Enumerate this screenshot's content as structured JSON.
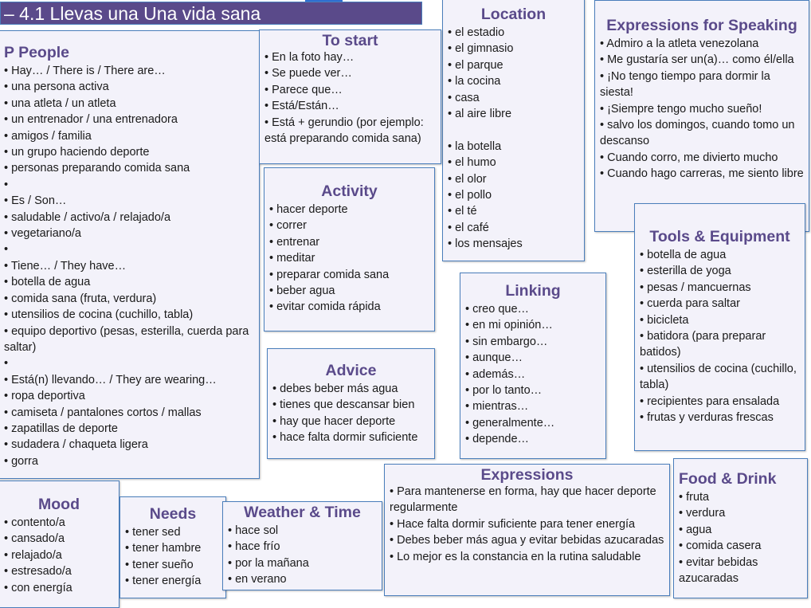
{
  "header": {
    "title": "– 4.1 Llevas una Una vida sana"
  },
  "people": {
    "title": "P People",
    "items": [
      "• Hay… / There is / There are…",
      "• una persona activa",
      "• una atleta / un atleta",
      "• un entrenador / una entrenadora",
      "• amigos / familia",
      "• un grupo haciendo deporte",
      "• personas preparando comida sana",
      "•",
      "• Es / Son…",
      "• saludable / activo/a / relajado/a",
      "• vegetariano/a",
      "•",
      "• Tiene… / They have…",
      "• botella de agua",
      "• comida sana (fruta, verdura)",
      "• utensilios de cocina (cuchillo, tabla)",
      "• equipo deportivo (pesas, esterilla, cuerda para saltar)",
      "•",
      "• Está(n) llevando… / They are wearing…",
      "• ropa deportiva",
      "• camiseta / pantalones cortos / mallas",
      "• zapatillas de deporte",
      "• sudadera / chaqueta ligera",
      "• gorra"
    ]
  },
  "to_start": {
    "title": "To start",
    "items": [
      "• En la foto hay…",
      "• Se puede ver…",
      "• Parece que…",
      "• Está/Están…",
      "• Está + gerundio (por ejemplo: está preparando comida sana)"
    ]
  },
  "activity": {
    "title": "Activity",
    "items": [
      "• hacer deporte",
      "• correr",
      "• entrenar",
      "• meditar",
      "• preparar comida sana",
      "• beber agua",
      "• evitar comida rápida"
    ]
  },
  "advice": {
    "title": "Advice",
    "items": [
      "• debes beber más agua",
      "• tienes que descansar bien",
      "• hay que hacer deporte",
      "• hace falta dormir suficiente"
    ]
  },
  "location": {
    "title": "Location",
    "items": [
      "• el estadio",
      "• el gimnasio",
      "• el parque",
      "• la cocina",
      "• casa",
      "• al aire libre",
      "",
      "• la botella",
      "• el humo",
      "• el olor",
      "• el pollo",
      "• el té",
      "• el café",
      "• los mensajes"
    ]
  },
  "speaking": {
    "title": "Expressions for Speaking",
    "items": [
      "• Admiro a la atleta venezolana",
      "• Me gustaría ser un(a)… como él/ella",
      "• ¡No tengo tiempo para dormir la siesta!",
      "• ¡Siempre tengo mucho sueño!",
      "• salvo los domingos, cuando tomo un descanso",
      "• Cuando corro, me divierto mucho",
      "• Cuando hago carreras, me siento libre"
    ]
  },
  "tools": {
    "title": "Tools & Equipment",
    "items": [
      "• botella de agua",
      "• esterilla de yoga",
      "• pesas / mancuernas",
      "• cuerda para saltar",
      "• bicicleta",
      "• batidora (para preparar batidos)",
      "• utensilios de cocina (cuchillo, tabla)",
      "• recipientes para ensalada",
      "• frutas y verduras frescas"
    ]
  },
  "linking": {
    "title": "Linking",
    "items": [
      "• creo que…",
      "• en mi opinión…",
      "• sin embargo…",
      "• aunque…",
      "• además…",
      "• por lo tanto…",
      "• mientras…",
      "• generalmente…",
      "• depende…"
    ]
  },
  "expressions": {
    "title": "Expressions",
    "items": [
      "• Para mantenerse en forma, hay que hacer deporte regularmente",
      "• Hace falta dormir suficiente para tener energía",
      "• Debes beber más agua y evitar bebidas azucaradas",
      "• Lo mejor es la constancia en la rutina saludable"
    ]
  },
  "food": {
    "title": "Food & Drink",
    "items": [
      "• fruta",
      "• verdura",
      "• agua",
      "• comida casera",
      "• evitar bebidas azucaradas"
    ]
  },
  "mood": {
    "title": "Mood",
    "items": [
      "• contento/a",
      "• cansado/a",
      "• relajado/a",
      "• estresado/a",
      "• con energía"
    ]
  },
  "needs": {
    "title": "Needs",
    "items": [
      "• tener sed",
      "• tener hambre",
      "• tener sueño",
      "• tener energía"
    ]
  },
  "weather": {
    "title": "Weather & Time",
    "items": [
      "• hace sol",
      "• hace frío",
      "• por la mañana",
      "• en verano"
    ]
  },
  "colors": {
    "title": "#5a4a8a",
    "border": "#4a7ebb",
    "box_bg": "#f3f2fa"
  }
}
